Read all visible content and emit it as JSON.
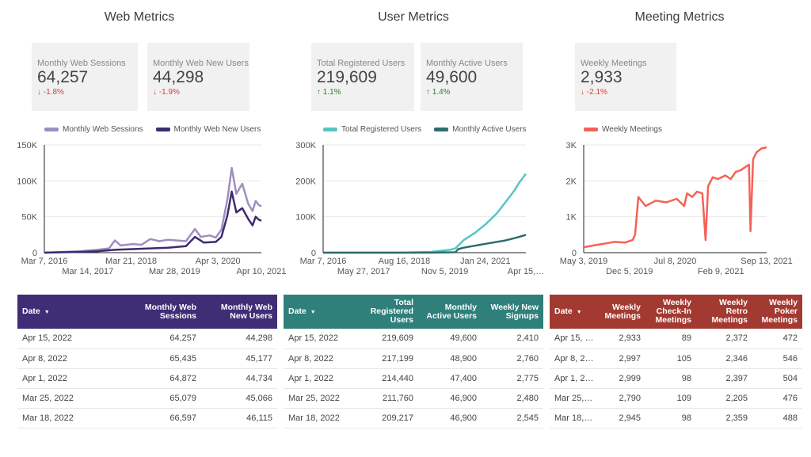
{
  "sections": {
    "web": {
      "title": "Web Metrics",
      "scorecards": [
        {
          "label": "Monthly Web Sessions",
          "value": "64,257",
          "delta": "-1.8%",
          "direction": "down"
        },
        {
          "label": "Monthly Web New Users",
          "value": "44,298",
          "delta": "-1.9%",
          "direction": "down"
        }
      ],
      "table": {
        "headers": [
          "Date",
          "Monthly Web Sessions",
          "Monthly Web New Users"
        ],
        "rows": [
          [
            "Apr 15, 2022",
            "64,257",
            "44,298"
          ],
          [
            "Apr 8, 2022",
            "65,435",
            "45,177"
          ],
          [
            "Apr 1, 2022",
            "64,872",
            "44,734"
          ],
          [
            "Mar 25, 2022",
            "65,079",
            "45,066"
          ],
          [
            "Mar 18, 2022",
            "66,597",
            "46,115"
          ]
        ]
      }
    },
    "user": {
      "title": "User Metrics",
      "scorecards": [
        {
          "label": "Total Registered Users",
          "value": "219,609",
          "delta": "1.1%",
          "direction": "up"
        },
        {
          "label": "Monthly Active Users",
          "value": "49,600",
          "delta": "1.4%",
          "direction": "up"
        }
      ],
      "table": {
        "headers": [
          "Date",
          "Total Registered Users",
          "Monthly Active Users",
          "Weekly New Signups"
        ],
        "rows": [
          [
            "Apr 15, 2022",
            "219,609",
            "49,600",
            "2,410"
          ],
          [
            "Apr 8, 2022",
            "217,199",
            "48,900",
            "2,760"
          ],
          [
            "Apr 1, 2022",
            "214,440",
            "47,400",
            "2,775"
          ],
          [
            "Mar 25, 2022",
            "211,760",
            "46,900",
            "2,480"
          ],
          [
            "Mar 18, 2022",
            "209,217",
            "46,900",
            "2,545"
          ]
        ]
      }
    },
    "meeting": {
      "title": "Meeting Metrics",
      "scorecards": [
        {
          "label": "Weekly Meetings",
          "value": "2,933",
          "delta": "-2.1%",
          "direction": "down"
        }
      ],
      "table": {
        "headers": [
          "Date",
          "Weekly Meetings",
          "Weekly Check-In Meetings",
          "Weekly Retro Meetings",
          "Weekly Poker Meetings"
        ],
        "rows": [
          [
            "Apr 15, 2…",
            "2,933",
            "89",
            "2,372",
            "472"
          ],
          [
            "Apr 8, 20…",
            "2,997",
            "105",
            "2,346",
            "546"
          ],
          [
            "Apr 1, 20…",
            "2,999",
            "98",
            "2,397",
            "504"
          ],
          [
            "Mar 25, …",
            "2,790",
            "109",
            "2,205",
            "476"
          ],
          [
            "Mar 18, …",
            "2,945",
            "98",
            "2,359",
            "488"
          ]
        ]
      }
    }
  },
  "colors": {
    "web_header": "#3f2d76",
    "user_header": "#2f7f7b",
    "meeting_header": "#a33a32",
    "web_sessions": "#9d8fbf",
    "web_new_users": "#3d2b70",
    "total_registered": "#56c6c4",
    "monthly_active": "#2f6d6d",
    "weekly_meetings": "#f46257"
  },
  "chart_data": [
    {
      "type": "line",
      "legend": [
        "Monthly Web Sessions",
        "Monthly Web New Users"
      ],
      "y_ticks": [
        "150K",
        "100K",
        "50K",
        "0"
      ],
      "ylim": [
        0,
        150000
      ],
      "x_ticks_top": [
        "Mar 7, 2016",
        "Mar 21, 2018",
        "Apr 3, 2020"
      ],
      "x_ticks_bottom": [
        "Mar 14, 2017",
        "Mar 28, 2019",
        "Apr 10, 2021"
      ],
      "x_range": [
        "2016-03-07",
        "2022-04-15"
      ],
      "grid": true,
      "series": [
        {
          "name": "Monthly Web Sessions",
          "color_key": "web_sessions",
          "points": [
            [
              "2016-03-07",
              0
            ],
            [
              "2016-09-01",
              1000
            ],
            [
              "2017-03-01",
              2000
            ],
            [
              "2017-09-01",
              4000
            ],
            [
              "2018-01-01",
              6000
            ],
            [
              "2018-03-01",
              17000
            ],
            [
              "2018-05-01",
              10000
            ],
            [
              "2018-09-01",
              12000
            ],
            [
              "2018-12-01",
              11000
            ],
            [
              "2019-03-01",
              19000
            ],
            [
              "2019-06-01",
              16000
            ],
            [
              "2019-09-01",
              18000
            ],
            [
              "2019-12-01",
              17000
            ],
            [
              "2020-03-01",
              16000
            ],
            [
              "2020-06-01",
              33000
            ],
            [
              "2020-08-01",
              22000
            ],
            [
              "2020-11-01",
              24000
            ],
            [
              "2021-01-01",
              21000
            ],
            [
              "2021-03-01",
              32000
            ],
            [
              "2021-05-01",
              74000
            ],
            [
              "2021-06-15",
              118000
            ],
            [
              "2021-08-01",
              82000
            ],
            [
              "2021-10-01",
              96000
            ],
            [
              "2021-12-01",
              68000
            ],
            [
              "2022-01-15",
              58000
            ],
            [
              "2022-02-15",
              72000
            ],
            [
              "2022-03-18",
              66597
            ],
            [
              "2022-04-15",
              64257
            ]
          ]
        },
        {
          "name": "Monthly Web New Users",
          "color_key": "web_new_users",
          "points": [
            [
              "2016-03-07",
              0
            ],
            [
              "2016-09-01",
              500
            ],
            [
              "2017-03-01",
              1000
            ],
            [
              "2017-09-01",
              2000
            ],
            [
              "2018-03-01",
              4000
            ],
            [
              "2018-09-01",
              5000
            ],
            [
              "2019-03-01",
              6000
            ],
            [
              "2019-09-01",
              7000
            ],
            [
              "2020-03-01",
              9000
            ],
            [
              "2020-06-01",
              22000
            ],
            [
              "2020-09-01",
              14000
            ],
            [
              "2021-01-01",
              15000
            ],
            [
              "2021-03-01",
              22000
            ],
            [
              "2021-05-01",
              52000
            ],
            [
              "2021-06-15",
              85000
            ],
            [
              "2021-08-01",
              56000
            ],
            [
              "2021-10-01",
              62000
            ],
            [
              "2021-12-01",
              47000
            ],
            [
              "2022-01-15",
              38000
            ],
            [
              "2022-02-15",
              50000
            ],
            [
              "2022-03-18",
              46115
            ],
            [
              "2022-04-15",
              44298
            ]
          ]
        }
      ]
    },
    {
      "type": "line",
      "legend": [
        "Total Registered Users",
        "Monthly Active Users"
      ],
      "y_ticks": [
        "300K",
        "200K",
        "100K",
        "0"
      ],
      "ylim": [
        0,
        300000
      ],
      "x_ticks_top": [
        "Mar 7, 2016",
        "Aug 16, 2018",
        "Jan 24, 2021"
      ],
      "x_ticks_bottom": [
        "May 27, 2017",
        "Nov 5, 2019",
        "Apr 15,…"
      ],
      "x_range": [
        "2016-03-07",
        "2022-04-15"
      ],
      "grid": true,
      "series": [
        {
          "name": "Total Registered Users",
          "color_key": "total_registered",
          "points": [
            [
              "2016-03-07",
              0
            ],
            [
              "2018-06-01",
              0
            ],
            [
              "2019-06-01",
              2000
            ],
            [
              "2020-01-01",
              8000
            ],
            [
              "2020-03-01",
              12000
            ],
            [
              "2020-06-01",
              35000
            ],
            [
              "2020-10-01",
              55000
            ],
            [
              "2021-02-01",
              80000
            ],
            [
              "2021-06-01",
              110000
            ],
            [
              "2021-09-01",
              140000
            ],
            [
              "2021-12-01",
              170000
            ],
            [
              "2022-02-01",
              195000
            ],
            [
              "2022-04-15",
              219609
            ]
          ]
        },
        {
          "name": "Monthly Active Users",
          "color_key": "monthly_active",
          "points": [
            [
              "2016-03-07",
              0
            ],
            [
              "2019-06-01",
              0
            ],
            [
              "2020-03-01",
              1000
            ],
            [
              "2020-04-01",
              10000
            ],
            [
              "2020-06-01",
              14000
            ],
            [
              "2020-09-01",
              18000
            ],
            [
              "2020-12-01",
              22000
            ],
            [
              "2021-03-01",
              26000
            ],
            [
              "2021-06-01",
              30000
            ],
            [
              "2021-09-01",
              34000
            ],
            [
              "2021-12-01",
              40000
            ],
            [
              "2022-02-01",
              44000
            ],
            [
              "2022-04-15",
              49600
            ]
          ]
        }
      ]
    },
    {
      "type": "line",
      "legend": [
        "Weekly Meetings"
      ],
      "y_ticks": [
        "3K",
        "2K",
        "1K",
        "0"
      ],
      "ylim": [
        0,
        3000
      ],
      "x_ticks_top": [
        "May 3, 2019",
        "Jul 8, 2020",
        "Sep 13, 2021"
      ],
      "x_ticks_bottom": [
        "Dec 5, 2019",
        "Feb 9, 2021"
      ],
      "x_range": [
        "2019-05-03",
        "2022-04-15"
      ],
      "grid": true,
      "series": [
        {
          "name": "Weekly Meetings",
          "color_key": "weekly_meetings",
          "points": [
            [
              "2019-05-03",
              150
            ],
            [
              "2019-07-01",
              200
            ],
            [
              "2019-09-01",
              250
            ],
            [
              "2019-11-01",
              300
            ],
            [
              "2020-01-01",
              280
            ],
            [
              "2020-02-15",
              350
            ],
            [
              "2020-03-01",
              500
            ],
            [
              "2020-03-20",
              1550
            ],
            [
              "2020-05-01",
              1300
            ],
            [
              "2020-07-01",
              1450
            ],
            [
              "2020-09-01",
              1400
            ],
            [
              "2020-11-01",
              1500
            ],
            [
              "2020-12-15",
              1300
            ],
            [
              "2021-01-01",
              1650
            ],
            [
              "2021-02-01",
              1550
            ],
            [
              "2021-03-01",
              1700
            ],
            [
              "2021-04-01",
              1650
            ],
            [
              "2021-04-20",
              350
            ],
            [
              "2021-05-05",
              1850
            ],
            [
              "2021-06-01",
              2100
            ],
            [
              "2021-07-01",
              2050
            ],
            [
              "2021-08-15",
              2150
            ],
            [
              "2021-09-15",
              2050
            ],
            [
              "2021-10-15",
              2250
            ],
            [
              "2021-11-15",
              2300
            ],
            [
              "2021-12-15",
              2400
            ],
            [
              "2022-01-01",
              2450
            ],
            [
              "2022-01-10",
              600
            ],
            [
              "2022-01-25",
              2600
            ],
            [
              "2022-02-15",
              2800
            ],
            [
              "2022-03-15",
              2900
            ],
            [
              "2022-04-15",
              2933
            ]
          ]
        }
      ]
    }
  ]
}
